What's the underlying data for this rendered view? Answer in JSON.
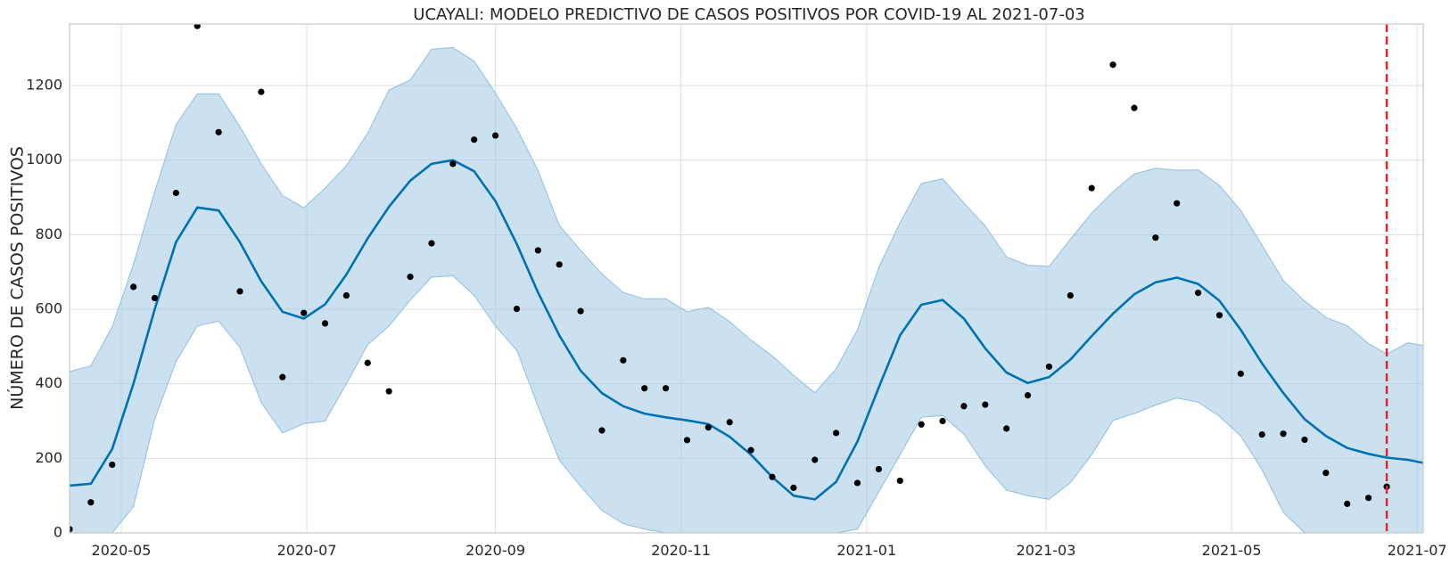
{
  "chart_data": {
    "type": "line",
    "title": "UCAYALI: MODELO PREDICTIVO DE CASOS POSITIVOS POR COVID-19 AL 2021-07-03",
    "xlabel": "",
    "ylabel": "NÚMERO DE CASOS POSITIVOS",
    "xlim": [
      "2020-04-14",
      "2021-07-03"
    ],
    "ylim": [
      0,
      1365
    ],
    "x_ticks": [
      "2020-05",
      "2020-07",
      "2020-09",
      "2020-11",
      "2021-01",
      "2021-03",
      "2021-05",
      "2021-07"
    ],
    "y_ticks": [
      0,
      200,
      400,
      600,
      800,
      1000,
      1200
    ],
    "grid": true,
    "vline": {
      "x": "2021-06-21",
      "color": "#e3242b",
      "style": "dashed"
    },
    "colors": {
      "forecast": "#0072b2",
      "band": "#a9cde4",
      "observed": "#000000"
    },
    "observed": {
      "x": [
        "2020-04-14",
        "2020-04-21",
        "2020-04-28",
        "2020-05-05",
        "2020-05-12",
        "2020-05-19",
        "2020-05-26",
        "2020-06-02",
        "2020-06-09",
        "2020-06-16",
        "2020-06-23",
        "2020-06-30",
        "2020-07-07",
        "2020-07-14",
        "2020-07-21",
        "2020-07-28",
        "2020-08-04",
        "2020-08-11",
        "2020-08-18",
        "2020-08-25",
        "2020-09-01",
        "2020-09-08",
        "2020-09-15",
        "2020-09-22",
        "2020-09-29",
        "2020-10-06",
        "2020-10-13",
        "2020-10-20",
        "2020-10-27",
        "2020-11-03",
        "2020-11-10",
        "2020-11-17",
        "2020-11-24",
        "2020-12-01",
        "2020-12-08",
        "2020-12-15",
        "2020-12-22",
        "2020-12-29",
        "2021-01-05",
        "2021-01-12",
        "2021-01-19",
        "2021-01-26",
        "2021-02-02",
        "2021-02-09",
        "2021-02-16",
        "2021-02-23",
        "2021-03-02",
        "2021-03-09",
        "2021-03-16",
        "2021-03-23",
        "2021-03-30",
        "2021-04-06",
        "2021-04-13",
        "2021-04-20",
        "2021-04-27",
        "2021-05-04",
        "2021-05-11",
        "2021-05-18",
        "2021-05-25",
        "2021-06-01",
        "2021-06-08",
        "2021-06-15",
        "2021-06-21"
      ],
      "y": [
        10,
        82,
        183,
        660,
        630,
        912,
        1360,
        1075,
        648,
        1183,
        418,
        590,
        562,
        637,
        456,
        380,
        687,
        777,
        990,
        1055,
        1066,
        601,
        758,
        720,
        595,
        275,
        463,
        388,
        388,
        249,
        283,
        297,
        222,
        150,
        121,
        196,
        268,
        134,
        171,
        140,
        291,
        300,
        340,
        344,
        280,
        369,
        446,
        637,
        925,
        1256,
        1140,
        792,
        884,
        644,
        584,
        427,
        264,
        266,
        250,
        161,
        78,
        94,
        124
      ]
    },
    "forecast": {
      "x": [
        "2020-04-14",
        "2020-04-21",
        "2020-04-28",
        "2020-05-05",
        "2020-05-12",
        "2020-05-19",
        "2020-05-26",
        "2020-06-02",
        "2020-06-09",
        "2020-06-16",
        "2020-06-23",
        "2020-06-30",
        "2020-07-07",
        "2020-07-14",
        "2020-07-21",
        "2020-07-28",
        "2020-08-04",
        "2020-08-11",
        "2020-08-18",
        "2020-08-25",
        "2020-09-01",
        "2020-09-08",
        "2020-09-15",
        "2020-09-22",
        "2020-09-29",
        "2020-10-06",
        "2020-10-13",
        "2020-10-20",
        "2020-10-27",
        "2020-11-03",
        "2020-11-10",
        "2020-11-17",
        "2020-11-24",
        "2020-12-01",
        "2020-12-08",
        "2020-12-15",
        "2020-12-22",
        "2020-12-29",
        "2021-01-05",
        "2021-01-12",
        "2021-01-19",
        "2021-01-26",
        "2021-02-02",
        "2021-02-09",
        "2021-02-16",
        "2021-02-23",
        "2021-03-02",
        "2021-03-09",
        "2021-03-16",
        "2021-03-23",
        "2021-03-30",
        "2021-04-06",
        "2021-04-13",
        "2021-04-20",
        "2021-04-27",
        "2021-05-04",
        "2021-05-11",
        "2021-05-18",
        "2021-05-25",
        "2021-06-01",
        "2021-06-08",
        "2021-06-15",
        "2021-06-21",
        "2021-06-28",
        "2021-07-03"
      ],
      "yhat": [
        127,
        132,
        225,
        400,
        600,
        780,
        873,
        865,
        780,
        675,
        593,
        575,
        613,
        693,
        790,
        875,
        945,
        990,
        1000,
        970,
        890,
        775,
        645,
        530,
        435,
        375,
        340,
        320,
        310,
        302,
        292,
        258,
        210,
        150,
        100,
        90,
        137,
        245,
        390,
        530,
        612,
        625,
        575,
        495,
        430,
        402,
        418,
        465,
        528,
        588,
        640,
        672,
        685,
        668,
        623,
        545,
        455,
        375,
        305,
        260,
        228,
        212,
        202,
        196,
        188
      ],
      "lower": [
        -200,
        -180,
        -100,
        70,
        305,
        460,
        555,
        568,
        498,
        350,
        268,
        293,
        300,
        400,
        505,
        555,
        625,
        686,
        690,
        637,
        555,
        490,
        340,
        195,
        125,
        60,
        25,
        10,
        -30,
        -20,
        -40,
        -100,
        -160,
        -200,
        -250,
        -250,
        -100,
        10,
        110,
        210,
        310,
        315,
        265,
        180,
        115,
        100,
        90,
        135,
        210,
        302,
        320,
        343,
        362,
        351,
        313,
        260,
        170,
        55,
        -15,
        -60,
        -80,
        -100,
        -100,
        -100,
        -100
      ],
      "upper": [
        433,
        448,
        553,
        720,
        915,
        1095,
        1178,
        1178,
        1090,
        990,
        905,
        872,
        925,
        985,
        1072,
        1188,
        1215,
        1297,
        1302,
        1265,
        1180,
        1085,
        972,
        825,
        758,
        695,
        645,
        628,
        628,
        593,
        605,
        567,
        517,
        475,
        423,
        376,
        440,
        545,
        712,
        832,
        937,
        950,
        885,
        823,
        740,
        718,
        715,
        788,
        858,
        915,
        963,
        978,
        973,
        974,
        932,
        865,
        772,
        677,
        622,
        578,
        556,
        508,
        480,
        510,
        503
      ]
    }
  }
}
